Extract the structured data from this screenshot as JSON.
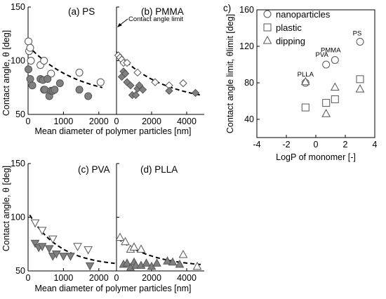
{
  "figure": {
    "left_group": {
      "ylabel": "Contact angle, θ [deg]",
      "xlabel": "Mean diameter of polymer particles [nm]"
    },
    "annotation": "Contact angle limit",
    "corner_mark": "c)"
  },
  "chart_data": [
    {
      "id": "ps",
      "type": "scatter",
      "panel_label": "(a) PS",
      "xlim": [
        0,
        2500
      ],
      "ylim": [
        50,
        150
      ],
      "xticks": [
        0,
        1000,
        2000
      ],
      "yticks": [
        50,
        100,
        150
      ],
      "series": [
        {
          "marker": "circle",
          "fill": "#ffffff",
          "x": [
            10,
            30,
            60,
            80,
            350,
            450,
            650,
            1450,
            2050
          ],
          "y": [
            118,
            109,
            112,
            100,
            96,
            100,
            88,
            89,
            80
          ]
        },
        {
          "marker": "circle",
          "fill": "#808080",
          "x": [
            10,
            60,
            120,
            350,
            420,
            450,
            470,
            550,
            600,
            650,
            700,
            750,
            900,
            1450,
            1700
          ],
          "y": [
            92,
            83,
            77,
            83,
            82,
            73,
            73,
            83,
            67,
            72,
            72,
            73,
            79,
            73,
            67
          ]
        }
      ],
      "fit_curve": {
        "x": [
          0,
          2100
        ],
        "y": [
          114,
          75
        ]
      }
    },
    {
      "id": "pmma",
      "type": "scatter",
      "panel_label": "(b) PMMA",
      "xlim": [
        0,
        5000
      ],
      "ylim": [
        50,
        150
      ],
      "xticks": [
        0,
        2000,
        4000
      ],
      "yticks": [
        50,
        100,
        150
      ],
      "series": [
        {
          "marker": "diamond",
          "fill": "#ffffff",
          "x": [
            100,
            200,
            300,
            400,
            600,
            1200,
            2200,
            3000,
            3800
          ],
          "y": [
            105,
            103,
            101,
            98,
            98,
            89,
            80,
            77,
            79
          ]
        },
        {
          "marker": "diamond",
          "fill": "#808080",
          "x": [
            300,
            400,
            500,
            600,
            800,
            900,
            1100,
            1200,
            1300,
            1500,
            3000,
            4500
          ],
          "y": [
            85,
            90,
            88,
            80,
            77,
            68,
            68,
            74,
            77,
            73,
            72,
            70
          ]
        }
      ],
      "fit_curve": {
        "x": [
          0,
          4800
        ],
        "y": [
          108,
          68
        ]
      }
    },
    {
      "id": "pva",
      "type": "scatter",
      "panel_label": "(c) PVA",
      "xlim": [
        0,
        2500
      ],
      "ylim": [
        50,
        150
      ],
      "xticks": [
        0,
        1000,
        2000
      ],
      "yticks": [
        50,
        100,
        150
      ],
      "series": [
        {
          "marker": "triangle-down",
          "fill": "#ffffff",
          "x": [
            200,
            400,
            700,
            1400,
            1700
          ],
          "y": [
            95,
            88,
            80,
            73,
            70
          ]
        },
        {
          "marker": "triangle-down",
          "fill": "#808080",
          "x": [
            200,
            300,
            400,
            600,
            700,
            800,
            1000,
            1200,
            1750
          ],
          "y": [
            76,
            72,
            73,
            71,
            64,
            66,
            64,
            64,
            55
          ]
        }
      ],
      "fit_curve": {
        "x": [
          50,
          2450
        ],
        "y": [
          102,
          57
        ]
      }
    },
    {
      "id": "plla",
      "type": "scatter",
      "panel_label": "(d) PLLA",
      "xlim": [
        0,
        5000
      ],
      "ylim": [
        50,
        150
      ],
      "xticks": [
        0,
        2000,
        4000
      ],
      "yticks": [
        50,
        100,
        150
      ],
      "series": [
        {
          "marker": "triangle",
          "fill": "#ffffff",
          "x": [
            200,
            500,
            800,
            1000,
            1400,
            3800,
            4600
          ],
          "y": [
            81,
            77,
            70,
            72,
            70,
            65,
            54
          ]
        },
        {
          "marker": "triangle",
          "fill": "#808080",
          "x": [
            400,
            600,
            800,
            1000,
            1100,
            1400,
            1700,
            2000,
            2300,
            2900,
            3200,
            3600
          ],
          "y": [
            56,
            57,
            53,
            58,
            55,
            55,
            57,
            54,
            57,
            59,
            58,
            56
          ]
        }
      ],
      "fit_curve": {
        "x": [
          100,
          4800
        ],
        "y": [
          80,
          56
        ]
      }
    },
    {
      "id": "limit",
      "type": "scatter",
      "xlabel": "LogP of monomer [-]",
      "ylabel": "Contact angle limit, θlimit [deg]",
      "xlim": [
        -4,
        4
      ],
      "ylim": [
        20,
        160
      ],
      "xticks": [
        -4,
        -2,
        0,
        2,
        4
      ],
      "yticks": [
        40,
        80,
        120,
        160
      ],
      "legend": [
        "nanoparticles",
        "plastic",
        "dipping"
      ],
      "series": [
        {
          "name": "nanoparticles",
          "marker": "circle",
          "fill": "#ffffff",
          "x": [
            -0.7,
            0.7,
            1.3,
            3.0
          ],
          "y": [
            80,
            100,
            105,
            125
          ]
        },
        {
          "name": "plastic",
          "marker": "square",
          "fill": "#ffffff",
          "x": [
            -0.7,
            0.7,
            1.3,
            3.0
          ],
          "y": [
            53,
            58,
            62,
            84
          ]
        },
        {
          "name": "dipping",
          "marker": "triangle",
          "fill": "#ffffff",
          "x": [
            -0.7,
            0.7,
            1.3,
            3.0
          ],
          "y": [
            81,
            46,
            75,
            73
          ]
        }
      ],
      "point_labels": [
        {
          "text": "PLLA",
          "x": -0.7,
          "y": 80
        },
        {
          "text": "PVA",
          "x": 0.7,
          "y": 100
        },
        {
          "text": "PMMA",
          "x": 1.3,
          "y": 105
        },
        {
          "text": "PS",
          "x": 3.0,
          "y": 125
        }
      ]
    }
  ]
}
